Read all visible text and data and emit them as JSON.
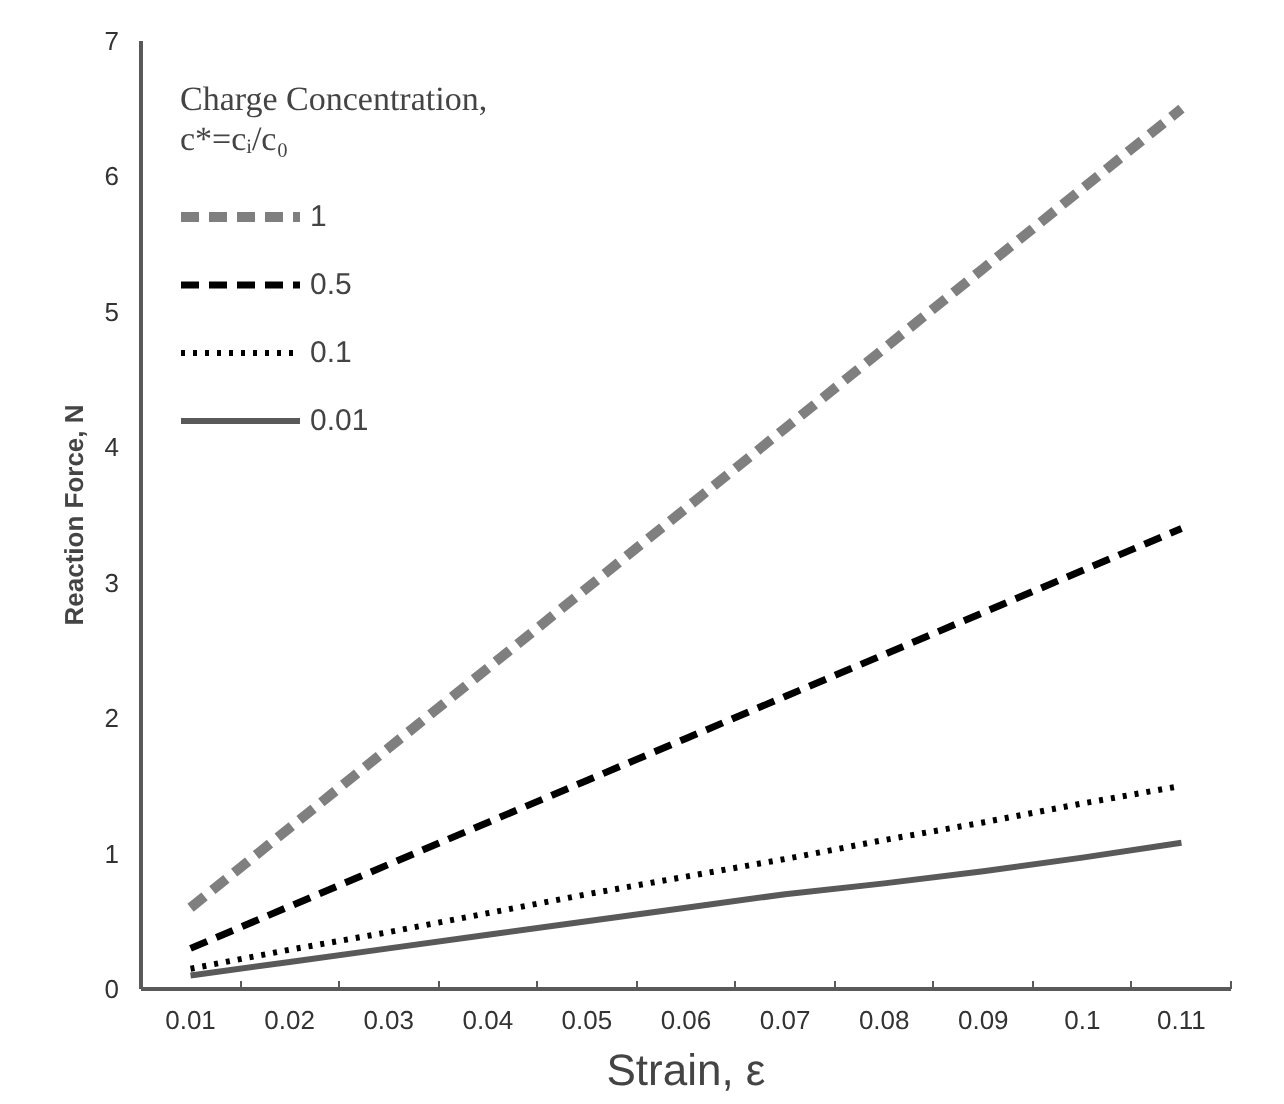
{
  "chart_data": {
    "type": "line",
    "xlabel": "Strain, ε",
    "ylabel": "Reaction Force, N",
    "legend_title": "Charge Concentration,\nc*=cᵢ/c₀",
    "categories": [
      "0.01",
      "0.02",
      "0.03",
      "0.04",
      "0.05",
      "0.06",
      "0.07",
      "0.08",
      "0.09",
      "0.1",
      "0.11"
    ],
    "series": [
      {
        "name": "1",
        "color": "#7f7f7f",
        "line_style": "dashed",
        "values": [
          0.6,
          1.19,
          1.78,
          2.37,
          2.96,
          3.55,
          4.14,
          4.73,
          5.32,
          5.91,
          6.5
        ]
      },
      {
        "name": "0.5",
        "color": "#000000",
        "line_style": "dashed",
        "values": [
          0.3,
          0.61,
          0.92,
          1.23,
          1.54,
          1.85,
          2.16,
          2.47,
          2.78,
          3.09,
          3.4
        ]
      },
      {
        "name": "0.1",
        "color": "#000000",
        "line_style": "dotted",
        "values": [
          0.15,
          0.29,
          0.42,
          0.56,
          0.7,
          0.83,
          0.96,
          1.1,
          1.23,
          1.37,
          1.5
        ]
      },
      {
        "name": "0.01",
        "color": "#595959",
        "line_style": "solid",
        "values": [
          0.1,
          0.2,
          0.3,
          0.4,
          0.5,
          0.6,
          0.7,
          0.78,
          0.87,
          0.97,
          1.08
        ]
      }
    ],
    "ylim": [
      0,
      7
    ],
    "yticks": [
      0,
      1,
      2,
      3,
      4,
      5,
      6,
      7
    ],
    "grid": false,
    "legend": "top left"
  }
}
